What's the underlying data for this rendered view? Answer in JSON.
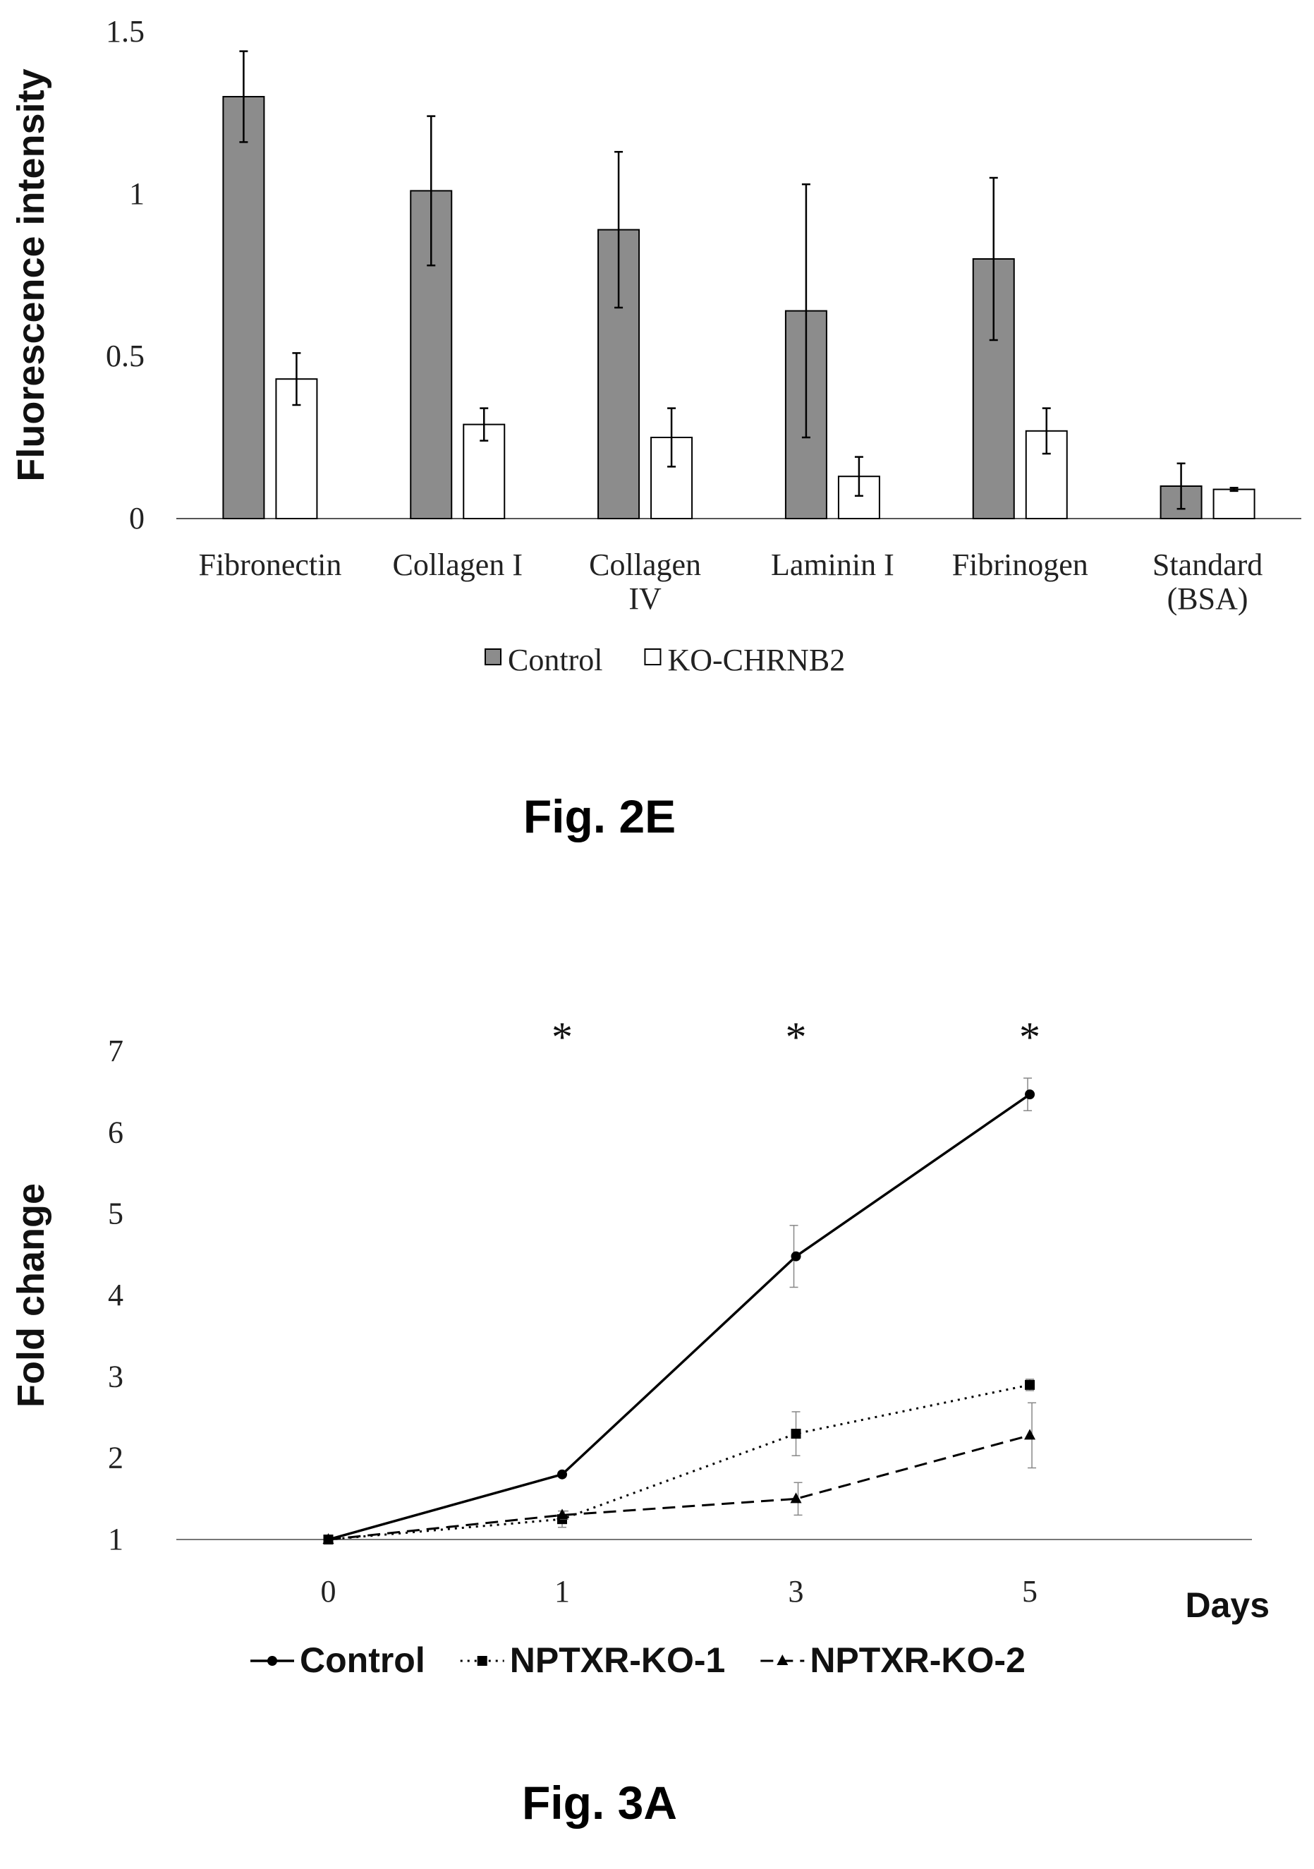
{
  "figures": [
    {
      "label": "Fig. 2E"
    },
    {
      "label": "Fig. 3A"
    }
  ],
  "chart_data": [
    {
      "type": "bar",
      "title": "",
      "xlabel": "",
      "ylabel": "Fluorescence intensity",
      "ylim": [
        0,
        1.5
      ],
      "yticks": [
        0,
        0.5,
        1,
        1.5
      ],
      "ytick_labels": [
        "0",
        "0.5",
        "1",
        "1.5"
      ],
      "grid": false,
      "legend_position": "bottom",
      "categories": [
        [
          "Fibronectin"
        ],
        [
          "Collagen I"
        ],
        [
          "Collagen",
          "IV"
        ],
        [
          "Laminin I"
        ],
        [
          "Fibrinogen"
        ],
        [
          "Standard",
          "(BSA)"
        ]
      ],
      "series": [
        {
          "name": "Control",
          "color": "#8c8c8c",
          "values": [
            1.3,
            1.01,
            0.89,
            0.64,
            0.8,
            0.1
          ],
          "errors": [
            0.14,
            0.23,
            0.24,
            0.39,
            0.25,
            0.07
          ]
        },
        {
          "name": "KO-CHRNB2",
          "color": "#ffffff",
          "values": [
            0.43,
            0.29,
            0.25,
            0.13,
            0.27,
            0.09
          ],
          "errors": [
            0.08,
            0.05,
            0.09,
            0.06,
            0.07,
            0.005
          ]
        }
      ]
    },
    {
      "type": "line",
      "title": "",
      "xlabel": "Days",
      "ylabel": "Fold change",
      "ylim": [
        1,
        7
      ],
      "yticks": [
        1,
        2,
        3,
        4,
        5,
        6,
        7
      ],
      "ytick_labels": [
        "1",
        "2",
        "3",
        "4",
        "5",
        "6",
        "7"
      ],
      "x": [
        "0",
        "1",
        "3",
        "5"
      ],
      "grid": false,
      "legend_position": "bottom",
      "annotations": [
        {
          "x": "1",
          "text": "*"
        },
        {
          "x": "3",
          "text": "*"
        },
        {
          "x": "5",
          "text": "*"
        }
      ],
      "series": [
        {
          "name": "Control",
          "style": "solid",
          "marker": "circle",
          "values": [
            1.0,
            1.8,
            4.48,
            6.47
          ],
          "errors": [
            0,
            0,
            0.38,
            0.2
          ]
        },
        {
          "name": "NPTXR-KO-1",
          "style": "dotted",
          "marker": "square",
          "values": [
            1.0,
            1.25,
            2.3,
            2.9
          ],
          "errors": [
            0,
            0.1,
            0.27,
            0.07
          ]
        },
        {
          "name": "NPTXR-KO-2",
          "style": "dashed",
          "marker": "triangle",
          "values": [
            1.0,
            1.3,
            1.5,
            2.28
          ],
          "errors": [
            0,
            0.05,
            0.2,
            0.4
          ]
        }
      ]
    }
  ]
}
